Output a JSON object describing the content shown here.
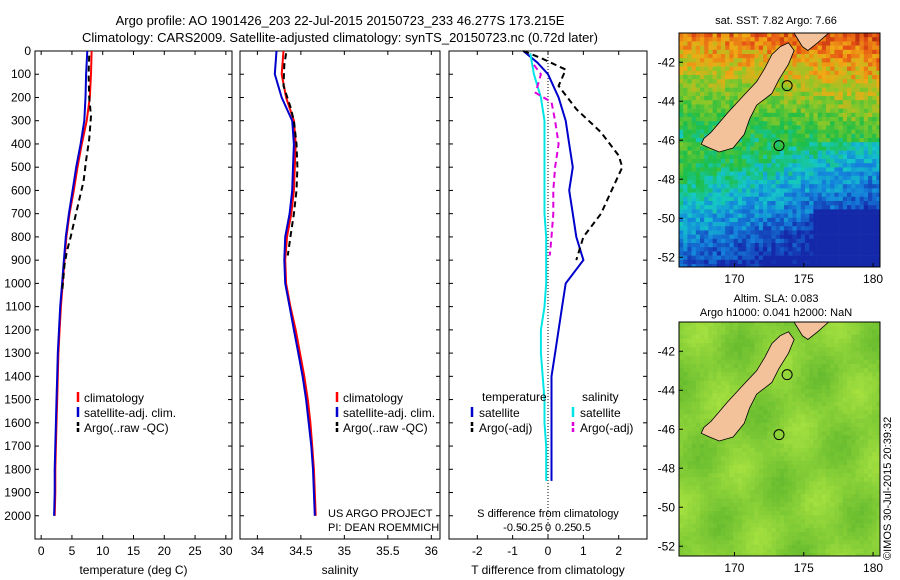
{
  "header": {
    "line1": "Argo profile: AO 1901426_203 22-Jul-2015 20150723_233 46.277S 173.215E",
    "line2": "Climatology: CARS2009. Satellite-adjusted climatology: synTS_20150723.nc (0.72d later)"
  },
  "credits": {
    "project": "US ARGO PROJECT",
    "pi": "PI: DEAN ROEMMICH",
    "watermark": "©IMOS 30-Jul-2015 20:39:32"
  },
  "colors": {
    "climatology": "#ff0000",
    "satellite": "#0000cc",
    "argo": "#000000",
    "salinity_satellite": "#00e5e5",
    "salinity_argo": "#dd00dd",
    "land": "#f4c29a"
  },
  "chart_data": [
    {
      "id": "temperature",
      "type": "line",
      "xlabel": "temperature (deg C)",
      "ylabel": "",
      "xlim": [
        -1,
        31
      ],
      "ylim": [
        2100,
        0
      ],
      "xticks": [
        0,
        5,
        10,
        15,
        20,
        25,
        30
      ],
      "yticks": [
        0,
        100,
        200,
        300,
        400,
        500,
        600,
        700,
        800,
        900,
        1000,
        1100,
        1200,
        1300,
        1400,
        1500,
        1600,
        1700,
        1800,
        1900,
        2000
      ],
      "legend": [
        "climatology",
        "satellite-adj. clim.",
        "Argo(..raw -QC)"
      ],
      "series": [
        {
          "name": "climatology",
          "color": "#ff0000",
          "dash": "solid",
          "points": [
            [
              8.2,
              0
            ],
            [
              8.1,
              100
            ],
            [
              7.9,
              200
            ],
            [
              7.4,
              300
            ],
            [
              6.6,
              400
            ],
            [
              5.9,
              500
            ],
            [
              5.3,
              600
            ],
            [
              4.6,
              700
            ],
            [
              4.1,
              800
            ],
            [
              3.8,
              900
            ],
            [
              3.5,
              1000
            ],
            [
              3.2,
              1100
            ],
            [
              3.0,
              1200
            ],
            [
              2.8,
              1300
            ],
            [
              2.7,
              1400
            ],
            [
              2.6,
              1500
            ],
            [
              2.5,
              1600
            ],
            [
              2.4,
              1700
            ],
            [
              2.3,
              1800
            ],
            [
              2.3,
              1900
            ],
            [
              2.2,
              2000
            ]
          ]
        },
        {
          "name": "satellite-adj. clim.",
          "color": "#0000cc",
          "dash": "solid",
          "points": [
            [
              7.5,
              0
            ],
            [
              7.3,
              100
            ],
            [
              7.2,
              200
            ],
            [
              7.0,
              300
            ],
            [
              6.4,
              400
            ],
            [
              5.7,
              500
            ],
            [
              5.1,
              600
            ],
            [
              4.5,
              700
            ],
            [
              4.0,
              800
            ],
            [
              3.7,
              900
            ],
            [
              3.4,
              1000
            ],
            [
              3.1,
              1100
            ],
            [
              2.9,
              1200
            ],
            [
              2.7,
              1300
            ],
            [
              2.6,
              1400
            ],
            [
              2.5,
              1500
            ],
            [
              2.4,
              1600
            ],
            [
              2.3,
              1700
            ],
            [
              2.2,
              1800
            ],
            [
              2.2,
              1900
            ],
            [
              2.1,
              2000
            ]
          ]
        },
        {
          "name": "Argo(..raw -QC)",
          "color": "#000000",
          "dash": "dashed",
          "points": [
            [
              7.8,
              20
            ],
            [
              7.7,
              100
            ],
            [
              7.8,
              200
            ],
            [
              8.1,
              280
            ],
            [
              7.8,
              380
            ],
            [
              7.3,
              470
            ],
            [
              6.9,
              560
            ],
            [
              6.1,
              650
            ],
            [
              5.4,
              730
            ],
            [
              4.8,
              800
            ],
            [
              4.2,
              860
            ],
            [
              3.8,
              920
            ],
            [
              3.6,
              980
            ],
            [
              3.4,
              1040
            ]
          ]
        }
      ]
    },
    {
      "id": "salinity",
      "type": "line",
      "xlabel": "salinity",
      "ylabel": "",
      "xlim": [
        33.8,
        36.1
      ],
      "ylim": [
        2100,
        0
      ],
      "xticks": [
        34,
        34.5,
        35,
        35.5,
        36
      ],
      "legend": [
        "climatology",
        "satellite-adj. clim.",
        "Argo(..raw -QC)"
      ],
      "series": [
        {
          "name": "climatology",
          "color": "#ff0000",
          "dash": "solid",
          "points": [
            [
              34.3,
              0
            ],
            [
              34.28,
              100
            ],
            [
              34.33,
              200
            ],
            [
              34.42,
              300
            ],
            [
              34.44,
              400
            ],
            [
              34.43,
              500
            ],
            [
              34.42,
              600
            ],
            [
              34.39,
              700
            ],
            [
              34.34,
              800
            ],
            [
              34.32,
              900
            ],
            [
              34.33,
              1000
            ],
            [
              34.38,
              1100
            ],
            [
              34.44,
              1200
            ],
            [
              34.49,
              1300
            ],
            [
              34.54,
              1400
            ],
            [
              34.58,
              1500
            ],
            [
              34.61,
              1600
            ],
            [
              34.63,
              1700
            ],
            [
              34.65,
              1800
            ],
            [
              34.66,
              1900
            ],
            [
              34.67,
              2000
            ]
          ]
        },
        {
          "name": "satellite-adj. clim.",
          "color": "#0000cc",
          "dash": "solid",
          "points": [
            [
              34.22,
              0
            ],
            [
              34.2,
              100
            ],
            [
              34.28,
              200
            ],
            [
              34.4,
              300
            ],
            [
              34.42,
              400
            ],
            [
              34.41,
              500
            ],
            [
              34.4,
              600
            ],
            [
              34.37,
              700
            ],
            [
              34.32,
              800
            ],
            [
              34.31,
              900
            ],
            [
              34.32,
              1000
            ],
            [
              34.37,
              1100
            ],
            [
              34.42,
              1200
            ],
            [
              34.47,
              1300
            ],
            [
              34.52,
              1400
            ],
            [
              34.56,
              1500
            ],
            [
              34.59,
              1600
            ],
            [
              34.62,
              1700
            ],
            [
              34.64,
              1800
            ],
            [
              34.65,
              1900
            ],
            [
              34.66,
              2000
            ]
          ]
        },
        {
          "name": "Argo(..raw -QC)",
          "color": "#000000",
          "dash": "dashed",
          "points": [
            [
              34.33,
              10
            ],
            [
              34.31,
              60
            ],
            [
              34.3,
              150
            ],
            [
              34.38,
              240
            ],
            [
              34.42,
              300
            ],
            [
              34.45,
              400
            ],
            [
              34.46,
              500
            ],
            [
              34.45,
              600
            ],
            [
              34.42,
              700
            ],
            [
              34.38,
              800
            ],
            [
              34.35,
              880
            ]
          ]
        }
      ]
    },
    {
      "id": "difference",
      "type": "line",
      "xlabel": "T difference from climatology",
      "xlabel2": "S difference from climatology",
      "xlim": [
        -2.8,
        2.8
      ],
      "ylim": [
        2100,
        0
      ],
      "xticks": [
        -2,
        -1,
        0,
        1,
        2
      ],
      "xticks2": [
        -0.5,
        -0.25,
        0,
        0.25,
        0.5
      ],
      "legend_headers": [
        "temperature",
        "salinity"
      ],
      "legend": [
        "satellite",
        "Argo(-adj)",
        "satellite",
        "Argo(-adj)"
      ],
      "series": [
        {
          "name": "temperature satellite",
          "color": "#0000cc",
          "dash": "solid",
          "points": [
            [
              -0.7,
              0
            ],
            [
              -0.3,
              50
            ],
            [
              0.0,
              100
            ],
            [
              0.3,
              200
            ],
            [
              0.5,
              300
            ],
            [
              0.6,
              400
            ],
            [
              0.7,
              500
            ],
            [
              0.6,
              600
            ],
            [
              0.7,
              700
            ],
            [
              0.8,
              800
            ],
            [
              1.0,
              900
            ],
            [
              0.5,
              1000
            ],
            [
              0.4,
              1100
            ],
            [
              0.3,
              1200
            ],
            [
              0.2,
              1300
            ],
            [
              0.1,
              1400
            ],
            [
              0.1,
              1500
            ],
            [
              0.1,
              1600
            ],
            [
              0.1,
              1700
            ],
            [
              0.1,
              1800
            ],
            [
              0.1,
              1850
            ]
          ]
        },
        {
          "name": "temperature Argo(-adj)",
          "color": "#000000",
          "dash": "dashed",
          "points": [
            [
              -0.7,
              0
            ],
            [
              -0.2,
              30
            ],
            [
              0.5,
              80
            ],
            [
              0.3,
              150
            ],
            [
              0.8,
              250
            ],
            [
              1.5,
              350
            ],
            [
              2.0,
              450
            ],
            [
              2.1,
              500
            ],
            [
              1.8,
              600
            ],
            [
              1.5,
              700
            ],
            [
              1.0,
              800
            ],
            [
              0.8,
              900
            ]
          ]
        },
        {
          "name": "salinity satellite",
          "color": "#00e5e5",
          "dash": "solid",
          "points": [
            [
              -0.5,
              10
            ],
            [
              -0.4,
              100
            ],
            [
              -0.2,
              200
            ],
            [
              -0.1,
              300
            ],
            [
              -0.1,
              400
            ],
            [
              -0.1,
              500
            ],
            [
              -0.1,
              600
            ],
            [
              -0.1,
              700
            ],
            [
              -0.05,
              800
            ],
            [
              -0.05,
              900
            ],
            [
              -0.05,
              1000
            ],
            [
              -0.1,
              1100
            ],
            [
              -0.2,
              1200
            ],
            [
              -0.2,
              1300
            ],
            [
              -0.15,
              1400
            ],
            [
              -0.1,
              1500
            ],
            [
              -0.1,
              1600
            ],
            [
              -0.05,
              1700
            ],
            [
              -0.05,
              1800
            ],
            [
              -0.05,
              1850
            ]
          ]
        },
        {
          "name": "salinity Argo(-adj)",
          "color": "#dd00dd",
          "dash": "dashed",
          "points": [
            [
              -0.4,
              60
            ],
            [
              -0.2,
              100
            ],
            [
              -0.35,
              180
            ],
            [
              0.1,
              220
            ],
            [
              0.2,
              300
            ],
            [
              0.3,
              400
            ],
            [
              0.2,
              500
            ],
            [
              0.15,
              600
            ],
            [
              0.15,
              700
            ],
            [
              0.1,
              800
            ],
            [
              0.05,
              880
            ]
          ]
        }
      ]
    },
    {
      "id": "sst-map",
      "type": "heatmap",
      "title": "sat. SST: 7.82  Argo: 7.66",
      "xlim": [
        166,
        180.5
      ],
      "ylim": [
        -52.5,
        -40.5
      ],
      "xticks": [
        170,
        175,
        180
      ],
      "yticks": [
        -42,
        -44,
        -46,
        -48,
        -50,
        -52
      ],
      "profile_location": [
        173.215,
        -46.277
      ]
    },
    {
      "id": "sla-map",
      "type": "heatmap",
      "title": "Altim. SLA: 0.083",
      "subtitle": "Argo h1000: 0.041  h2000: NaN",
      "xlim": [
        166,
        180.5
      ],
      "ylim": [
        -52.5,
        -40.5
      ],
      "xticks": [
        170,
        175,
        180
      ],
      "yticks": [
        -42,
        -44,
        -46,
        -48,
        -50,
        -52
      ],
      "profile_location": [
        173.215,
        -46.277
      ]
    }
  ]
}
